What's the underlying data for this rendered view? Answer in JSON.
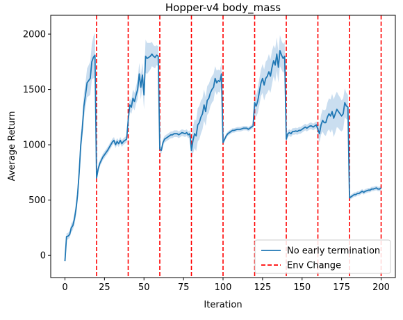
{
  "chart_data": {
    "type": "line",
    "title": "Hopper-v4 body_mass",
    "xlabel": "Iteration",
    "ylabel": "Average Return",
    "xlim": [
      -9,
      209
    ],
    "ylim": [
      -200,
      2170
    ],
    "xticks": [
      0,
      25,
      50,
      75,
      100,
      125,
      150,
      175,
      200
    ],
    "yticks": [
      0,
      500,
      1000,
      1500,
      2000
    ],
    "grid": false,
    "legend_position": "lower-right",
    "series": [
      {
        "name": "No early termination",
        "color": "#1f77b4",
        "band_color": "#a6c8e6",
        "x": [
          0,
          1,
          2,
          3,
          4,
          5,
          6,
          7,
          8,
          9,
          10,
          11,
          12,
          13,
          14,
          15,
          16,
          17,
          18,
          19,
          20,
          21,
          22,
          23,
          24,
          25,
          26,
          27,
          28,
          29,
          30,
          31,
          32,
          33,
          34,
          35,
          36,
          37,
          38,
          39,
          40,
          41,
          42,
          43,
          44,
          45,
          46,
          47,
          48,
          49,
          50,
          51,
          52,
          53,
          54,
          55,
          56,
          57,
          58,
          59,
          60,
          61,
          62,
          63,
          64,
          65,
          66,
          67,
          68,
          69,
          70,
          71,
          72,
          73,
          74,
          75,
          76,
          77,
          78,
          79,
          80,
          81,
          82,
          83,
          84,
          85,
          86,
          87,
          88,
          89,
          90,
          91,
          92,
          93,
          94,
          95,
          96,
          97,
          98,
          99,
          100,
          101,
          102,
          103,
          104,
          105,
          106,
          107,
          108,
          109,
          110,
          111,
          112,
          113,
          114,
          115,
          116,
          117,
          118,
          119,
          120,
          121,
          122,
          123,
          124,
          125,
          126,
          127,
          128,
          129,
          130,
          131,
          132,
          133,
          134,
          135,
          136,
          137,
          138,
          139,
          140,
          141,
          142,
          143,
          144,
          145,
          146,
          147,
          148,
          149,
          150,
          151,
          152,
          153,
          154,
          155,
          156,
          157,
          158,
          159,
          160,
          161,
          162,
          163,
          164,
          165,
          166,
          167,
          168,
          169,
          170,
          171,
          172,
          173,
          174,
          175,
          176,
          177,
          178,
          179,
          180,
          181,
          182,
          183,
          184,
          185,
          186,
          187,
          188,
          189,
          190,
          191,
          192,
          193,
          194,
          195,
          196,
          197,
          198,
          199,
          200
        ],
        "values": [
          -50,
          170,
          175,
          190,
          250,
          270,
          330,
          420,
          550,
          750,
          1000,
          1150,
          1350,
          1450,
          1560,
          1580,
          1600,
          1750,
          1790,
          1810,
          700,
          780,
          830,
          860,
          890,
          910,
          930,
          950,
          975,
          1000,
          1025,
          1040,
          1000,
          1030,
          1010,
          1040,
          1010,
          1030,
          1040,
          1050,
          1220,
          1360,
          1340,
          1420,
          1390,
          1450,
          1500,
          1640,
          1520,
          1630,
          1450,
          1800,
          1780,
          1790,
          1800,
          1820,
          1800,
          1790,
          1810,
          1800,
          960,
          950,
          1020,
          1050,
          1060,
          1070,
          1080,
          1090,
          1090,
          1100,
          1100,
          1100,
          1090,
          1100,
          1110,
          1105,
          1100,
          1110,
          1090,
          1100,
          950,
          1040,
          1100,
          1080,
          1180,
          1200,
          1250,
          1280,
          1360,
          1300,
          1400,
          1420,
          1470,
          1500,
          1520,
          1600,
          1560,
          1580,
          1570,
          1640,
          1020,
          1050,
          1080,
          1100,
          1110,
          1120,
          1130,
          1130,
          1135,
          1140,
          1140,
          1140,
          1145,
          1150,
          1150,
          1150,
          1140,
          1150,
          1160,
          1170,
          1380,
          1350,
          1400,
          1480,
          1560,
          1600,
          1540,
          1600,
          1620,
          1660,
          1620,
          1700,
          1760,
          1720,
          1820,
          1700,
          1850,
          1810,
          1780,
          1800,
          1050,
          1100,
          1110,
          1100,
          1120,
          1120,
          1125,
          1120,
          1130,
          1130,
          1140,
          1150,
          1160,
          1150,
          1160,
          1170,
          1170,
          1160,
          1170,
          1180,
          1140,
          1100,
          1180,
          1220,
          1200,
          1200,
          1250,
          1280,
          1260,
          1300,
          1240,
          1280,
          1320,
          1300,
          1280,
          1260,
          1280,
          1380,
          1350,
          1340,
          520,
          530,
          540,
          550,
          550,
          560,
          560,
          570,
          580,
          570,
          580,
          585,
          590,
          590,
          600,
          600,
          605,
          610,
          600,
          600,
          610
        ],
        "band": [
          0,
          30,
          30,
          30,
          40,
          40,
          50,
          60,
          70,
          80,
          90,
          90,
          110,
          110,
          130,
          140,
          150,
          160,
          190,
          200,
          30,
          30,
          30,
          30,
          30,
          30,
          30,
          30,
          30,
          30,
          30,
          30,
          30,
          30,
          30,
          30,
          30,
          30,
          30,
          30,
          50,
          60,
          60,
          80,
          80,
          80,
          90,
          100,
          110,
          110,
          130,
          150,
          140,
          130,
          120,
          110,
          100,
          100,
          90,
          90,
          30,
          30,
          30,
          30,
          30,
          30,
          30,
          30,
          30,
          30,
          30,
          30,
          30,
          30,
          30,
          30,
          30,
          30,
          30,
          30,
          90,
          120,
          130,
          140,
          150,
          150,
          150,
          140,
          140,
          130,
          130,
          130,
          120,
          120,
          120,
          110,
          110,
          100,
          100,
          100,
          20,
          20,
          20,
          20,
          20,
          20,
          20,
          20,
          20,
          20,
          20,
          20,
          20,
          20,
          20,
          20,
          20,
          20,
          20,
          20,
          90,
          100,
          110,
          120,
          120,
          130,
          140,
          150,
          150,
          160,
          150,
          150,
          140,
          150,
          150,
          140,
          140,
          130,
          130,
          130,
          30,
          30,
          30,
          30,
          30,
          30,
          30,
          30,
          30,
          30,
          30,
          30,
          30,
          30,
          30,
          30,
          30,
          30,
          30,
          30,
          60,
          80,
          90,
          100,
          110,
          120,
          130,
          140,
          150,
          160,
          170,
          170,
          160,
          150,
          150,
          140,
          140,
          130,
          120,
          110,
          20,
          20,
          20,
          20,
          20,
          20,
          20,
          20,
          20,
          20,
          20,
          20,
          20,
          20,
          20,
          20,
          20,
          20,
          20,
          20,
          20
        ]
      },
      {
        "name": "Env Change",
        "color": "#ff0000",
        "style": "dashed",
        "vlines": [
          20,
          40,
          60,
          80,
          100,
          120,
          140,
          160,
          180,
          200
        ]
      }
    ]
  }
}
